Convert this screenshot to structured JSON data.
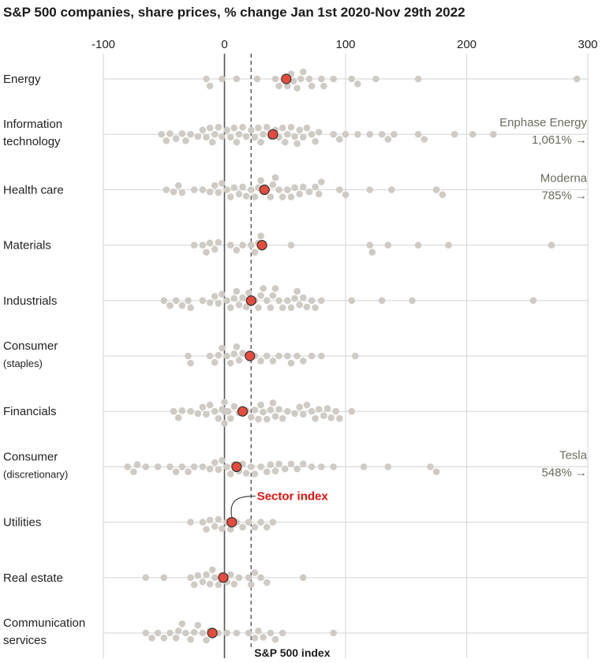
{
  "title": "S&P 500 companies, share prices, % change Jan 1st 2020-Nov 29th 2022",
  "chart_data": {
    "type": "scatter",
    "title": "S&P 500 companies, share prices, % change Jan 1st 2020-Nov 29th 2022",
    "xlim": [
      -100,
      300
    ],
    "x_ticks": [
      "-100",
      "0",
      "100",
      "200",
      "300"
    ],
    "x_tick_values": [
      -100,
      0,
      100,
      200,
      300
    ],
    "grid": true,
    "colors": {
      "company_dot": "#cfcbc4",
      "sector_dot": "#e64b3c",
      "sector_dot_stroke": "#333333",
      "zero_line": "#555555",
      "index_line": "#555555",
      "sector_label": "#e3120b",
      "callout_text": "#6b6b5e",
      "row_line": "#d9d9d9"
    },
    "sp500_index_value": 22,
    "sp500_index_label": "S&P 500 index",
    "sector_index_label": "Sector index",
    "sectors": [
      {
        "name": [
          "Energy"
        ],
        "index": 51,
        "companies": [
          -15,
          -12,
          -2,
          10,
          27,
          42,
          45,
          50,
          52,
          55,
          57,
          60,
          63,
          65,
          70,
          72,
          80,
          82,
          90,
          105,
          110,
          125,
          160,
          291
        ]
      },
      {
        "name": [
          "Information",
          "technology"
        ],
        "index": 40,
        "companies": [
          -52,
          -48,
          -45,
          -40,
          -35,
          -32,
          -28,
          -22,
          -18,
          -15,
          -12,
          -10,
          -8,
          -5,
          -2,
          2,
          5,
          8,
          10,
          12,
          15,
          18,
          22,
          25,
          28,
          30,
          32,
          35,
          38,
          42,
          45,
          48,
          50,
          52,
          55,
          58,
          60,
          62,
          65,
          68,
          72,
          75,
          78,
          90,
          95,
          100,
          110,
          120,
          130,
          135,
          140,
          160,
          165,
          190,
          205,
          222
        ],
        "callout": {
          "name": "Enphase Energy",
          "value_label": "1,061%"
        }
      },
      {
        "name": [
          "Health care"
        ],
        "index": 33,
        "companies": [
          -48,
          -42,
          -38,
          -35,
          -25,
          -18,
          -12,
          -8,
          -5,
          -2,
          2,
          5,
          8,
          12,
          15,
          18,
          22,
          25,
          28,
          30,
          35,
          38,
          40,
          42,
          45,
          48,
          52,
          55,
          58,
          62,
          65,
          70,
          75,
          78,
          80,
          95,
          100,
          120,
          138,
          175,
          180
        ],
        "callout": {
          "name": "Moderna",
          "value_label": "785%"
        }
      },
      {
        "name": [
          "Materials"
        ],
        "index": 31,
        "companies": [
          -25,
          -18,
          -15,
          -12,
          -8,
          -5,
          5,
          10,
          15,
          22,
          25,
          28,
          30,
          55,
          120,
          122,
          135,
          160,
          185,
          270
        ]
      },
      {
        "name": [
          "Industrials"
        ],
        "index": 22,
        "companies": [
          -50,
          -45,
          -40,
          -35,
          -30,
          -28,
          -18,
          -12,
          -8,
          -5,
          -2,
          2,
          5,
          8,
          10,
          12,
          15,
          18,
          20,
          25,
          28,
          30,
          32,
          35,
          38,
          40,
          42,
          45,
          48,
          52,
          55,
          58,
          60,
          62,
          65,
          68,
          72,
          75,
          80,
          105,
          130,
          155,
          255
        ]
      },
      {
        "name": [
          "Consumer",
          "(staples)"
        ],
        "index": 21,
        "companies": [
          -30,
          -28,
          -12,
          -8,
          -5,
          -2,
          2,
          5,
          8,
          10,
          12,
          15,
          25,
          30,
          35,
          40,
          45,
          52,
          55,
          60,
          65,
          72,
          80,
          108
        ]
      },
      {
        "name": [
          "Financials"
        ],
        "index": 15,
        "companies": [
          -42,
          -38,
          -35,
          -28,
          -22,
          -18,
          -15,
          -12,
          -8,
          -5,
          -2,
          0,
          0,
          0,
          1,
          2,
          2,
          3,
          5,
          8,
          12,
          18,
          22,
          25,
          28,
          30,
          32,
          35,
          38,
          40,
          42,
          45,
          48,
          52,
          58,
          62,
          65,
          68,
          72,
          75,
          78,
          82,
          85,
          88,
          92,
          95,
          105
        ]
      },
      {
        "name": [
          "Consumer",
          "(discretionary)"
        ],
        "index": 10,
        "companies": [
          -80,
          -75,
          -72,
          -65,
          -55,
          -45,
          -40,
          -35,
          -30,
          -25,
          -18,
          -12,
          -8,
          -5,
          -2,
          2,
          5,
          8,
          12,
          15,
          18,
          22,
          25,
          30,
          35,
          38,
          42,
          45,
          50,
          55,
          60,
          65,
          72,
          80,
          90,
          115,
          135,
          170,
          175
        ],
        "callout": {
          "name": "Tesla",
          "value_label": "548%"
        }
      },
      {
        "name": [
          "Utilities"
        ],
        "index": 6,
        "companies": [
          -28,
          -18,
          -15,
          -12,
          -8,
          -5,
          -2,
          2,
          5,
          10,
          15,
          20,
          25,
          30,
          35,
          40
        ]
      },
      {
        "name": [
          "Real estate"
        ],
        "index": -1,
        "companies": [
          -65,
          -50,
          -28,
          -25,
          -22,
          -18,
          -15,
          -12,
          -10,
          -8,
          -5,
          -2,
          2,
          5,
          8,
          12,
          20,
          22,
          25,
          30,
          35,
          65
        ]
      },
      {
        "name": [
          "Communication",
          "services"
        ],
        "index": -10,
        "companies": [
          -65,
          -60,
          -55,
          -50,
          -45,
          -40,
          -38,
          -35,
          -32,
          -28,
          -25,
          -22,
          -18,
          -15,
          -12,
          -5,
          2,
          10,
          20,
          25,
          28,
          32,
          38,
          42,
          48,
          90
        ]
      }
    ]
  }
}
